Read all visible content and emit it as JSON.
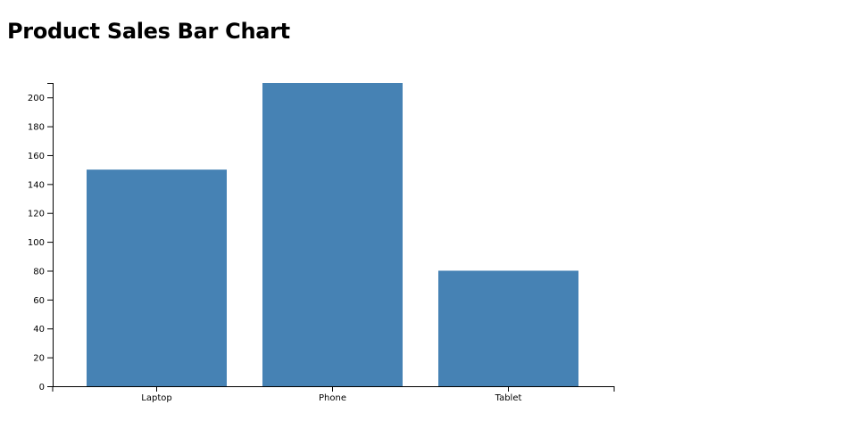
{
  "chart_data": {
    "type": "bar",
    "title": "Product Sales Bar Chart",
    "categories": [
      "Laptop",
      "Phone",
      "Tablet"
    ],
    "values": [
      150,
      210,
      80
    ],
    "xlabel": "",
    "ylabel": "",
    "ylim": [
      0,
      210
    ],
    "yticks": [
      0,
      20,
      40,
      60,
      80,
      100,
      120,
      140,
      160,
      180,
      200
    ],
    "grid": false,
    "bar_color": "#4682b4"
  }
}
